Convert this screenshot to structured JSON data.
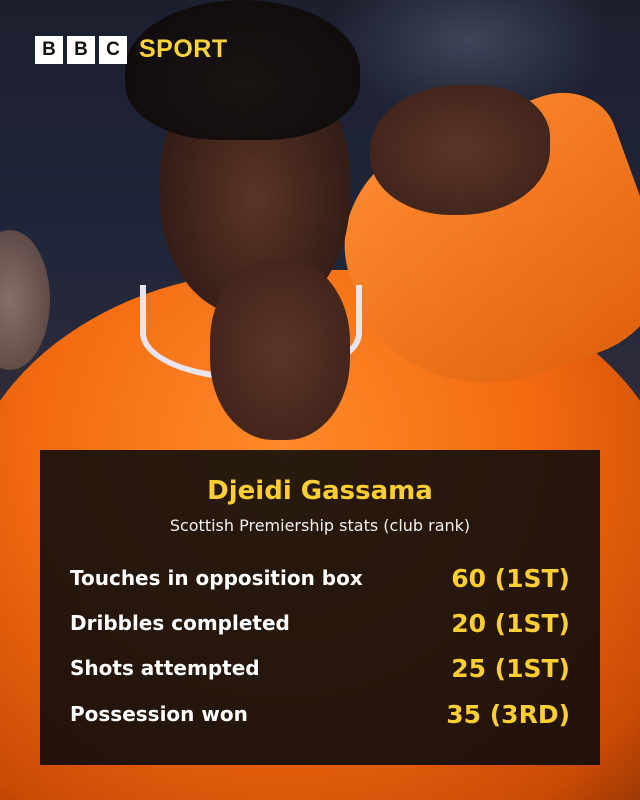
{
  "brand": {
    "boxes": [
      "B",
      "B",
      "C"
    ],
    "sport": "SPORT",
    "accent": "#fdcf33"
  },
  "card": {
    "title": "Djeidi Gassama",
    "subtitle": "Scottish Premiership stats (club rank)",
    "stats": [
      {
        "label": "Touches in opposition box",
        "value": "60 (1ST)"
      },
      {
        "label": "Dribbles completed",
        "value": "20 (1ST)"
      },
      {
        "label": "Shots attempted",
        "value": "25 (1ST)"
      },
      {
        "label": "Possession won",
        "value": "35 (3RD)"
      }
    ]
  }
}
